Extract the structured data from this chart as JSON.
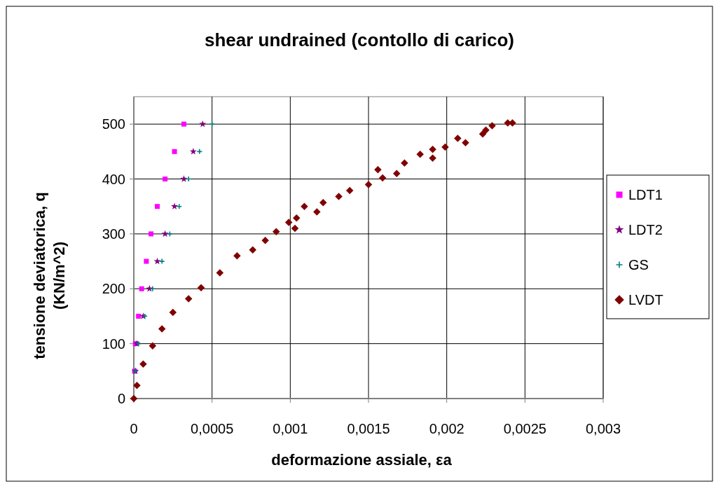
{
  "chart_data": {
    "type": "scatter",
    "title": "shear undrained (contollo di carico)",
    "xlabel": "deformazione assiale, εa",
    "ylabel": "tensione deviatorica, q (KN/m^2)",
    "xlim": [
      0,
      0.003
    ],
    "ylim": [
      0,
      550
    ],
    "xticks": [
      {
        "value": 0,
        "label": "0"
      },
      {
        "value": 0.0005,
        "label": "0,0005"
      },
      {
        "value": 0.001,
        "label": "0,001"
      },
      {
        "value": 0.0015,
        "label": "0,0015"
      },
      {
        "value": 0.002,
        "label": "0,002"
      },
      {
        "value": 0.0025,
        "label": "0,0025"
      },
      {
        "value": 0.003,
        "label": "0,003"
      }
    ],
    "yticks": [
      0,
      100,
      200,
      300,
      400,
      500
    ],
    "grid": true,
    "legend": "right",
    "series": [
      {
        "name": "LDT1",
        "color": "#ff00ff",
        "marker": "square",
        "x": [
          5e-06,
          1e-05,
          3e-05,
          5e-05,
          8e-05,
          0.00011,
          0.00015,
          0.0002,
          0.00026,
          0.00032
        ],
        "values": [
          50,
          100,
          150,
          200,
          250,
          300,
          350,
          400,
          450,
          500
        ]
      },
      {
        "name": "LDT2",
        "color": "#800080",
        "marker": "star",
        "x": [
          1e-05,
          2e-05,
          6e-05,
          0.0001,
          0.00015,
          0.0002,
          0.00026,
          0.00032,
          0.00038,
          0.00044
        ],
        "values": [
          50,
          100,
          150,
          200,
          250,
          300,
          350,
          400,
          450,
          500
        ]
      },
      {
        "name": "GS",
        "color": "#008080",
        "marker": "cross",
        "x": [
          1e-05,
          3e-05,
          7e-05,
          0.00012,
          0.00018,
          0.00023,
          0.00029,
          0.00035,
          0.00042,
          0.0005
        ],
        "values": [
          50,
          100,
          150,
          200,
          250,
          300,
          350,
          400,
          450,
          500
        ]
      },
      {
        "name": "LVDT",
        "color": "#800000",
        "marker": "diamond",
        "x": [
          0,
          2e-05,
          6e-05,
          0.00012,
          0.00018,
          0.00025,
          0.00035,
          0.00043,
          0.00055,
          0.00066,
          0.00076,
          0.00084,
          0.00091,
          0.00099,
          0.00104,
          0.00103,
          0.00109,
          0.00117,
          0.00121,
          0.00131,
          0.00138,
          0.0015,
          0.00156,
          0.00159,
          0.00168,
          0.00173,
          0.00183,
          0.00191,
          0.00191,
          0.00199,
          0.00207,
          0.00212,
          0.00223,
          0.00225,
          0.00229,
          0.00239,
          0.00242
        ],
        "values": [
          0,
          24,
          63,
          96,
          127,
          157,
          182,
          202,
          229,
          260,
          271,
          288,
          304,
          321,
          329,
          310,
          350,
          340,
          357,
          368,
          379,
          390,
          417,
          402,
          410,
          429,
          445,
          454,
          438,
          458,
          474,
          466,
          482,
          489,
          497,
          502,
          502
        ]
      }
    ]
  }
}
